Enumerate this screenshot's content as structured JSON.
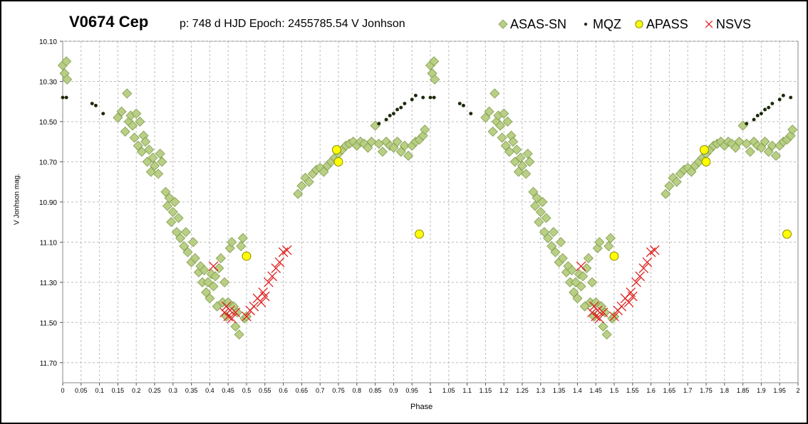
{
  "chart_data": {
    "type": "scatter",
    "title": "V0674 Cep",
    "subtitle": "p: 748 d  HJD Epoch: 2455785.54  V Jonhson",
    "xlabel": "Phase",
    "ylabel": "V Jonhson mag.",
    "xlim": [
      0,
      2
    ],
    "ylim": [
      10.1,
      11.8
    ],
    "y_inverted": true,
    "grid": true,
    "legend_position": "top-right",
    "x_ticks": [
      "0",
      "0.05",
      "0.1",
      "0.15",
      "0.2",
      "0.25",
      "0.3",
      "0.35",
      "0.4",
      "0.45",
      "0.5",
      "0.55",
      "0.6",
      "0.65",
      "0.7",
      "0.75",
      "0.8",
      "0.85",
      "0.9",
      "0.95",
      "1",
      "1.05",
      "1.1",
      "1.15",
      "1.2",
      "1.25",
      "1.3",
      "1.35",
      "1.4",
      "1.45",
      "1.5",
      "1.55",
      "1.6",
      "1.65",
      "1.7",
      "1.75",
      "1.8",
      "1.85",
      "1.9",
      "1.95",
      "2"
    ],
    "y_ticks": [
      "10.10",
      "10.30",
      "10.50",
      "10.70",
      "10.90",
      "11.10",
      "11.30",
      "11.50",
      "11.70"
    ],
    "series": [
      {
        "name": "ASAS-SN",
        "marker": "diamond",
        "color": "#b5cc7f",
        "stroke": "#7f9a4a",
        "points": [
          [
            0.0,
            10.22
          ],
          [
            0.005,
            10.26
          ],
          [
            0.01,
            10.2
          ],
          [
            0.012,
            10.29
          ],
          [
            0.15,
            10.48
          ],
          [
            0.16,
            10.45
          ],
          [
            0.17,
            10.55
          ],
          [
            0.175,
            10.36
          ],
          [
            0.18,
            10.5
          ],
          [
            0.185,
            10.47
          ],
          [
            0.19,
            10.52
          ],
          [
            0.195,
            10.58
          ],
          [
            0.2,
            10.46
          ],
          [
            0.205,
            10.62
          ],
          [
            0.21,
            10.5
          ],
          [
            0.215,
            10.65
          ],
          [
            0.22,
            10.57
          ],
          [
            0.225,
            10.6
          ],
          [
            0.23,
            10.7
          ],
          [
            0.235,
            10.64
          ],
          [
            0.24,
            10.75
          ],
          [
            0.245,
            10.68
          ],
          [
            0.25,
            10.72
          ],
          [
            0.26,
            10.76
          ],
          [
            0.265,
            10.66
          ],
          [
            0.27,
            10.7
          ],
          [
            0.28,
            10.85
          ],
          [
            0.285,
            10.92
          ],
          [
            0.29,
            10.88
          ],
          [
            0.295,
            11.0
          ],
          [
            0.3,
            10.95
          ],
          [
            0.305,
            10.9
          ],
          [
            0.31,
            11.05
          ],
          [
            0.315,
            10.98
          ],
          [
            0.32,
            11.08
          ],
          [
            0.33,
            11.12
          ],
          [
            0.335,
            11.05
          ],
          [
            0.34,
            11.15
          ],
          [
            0.35,
            11.2
          ],
          [
            0.355,
            11.1
          ],
          [
            0.36,
            11.18
          ],
          [
            0.37,
            11.25
          ],
          [
            0.375,
            11.22
          ],
          [
            0.38,
            11.3
          ],
          [
            0.385,
            11.24
          ],
          [
            0.39,
            11.35
          ],
          [
            0.395,
            11.3
          ],
          [
            0.4,
            11.38
          ],
          [
            0.405,
            11.26
          ],
          [
            0.41,
            11.32
          ],
          [
            0.415,
            11.27
          ],
          [
            0.42,
            11.42
          ],
          [
            0.425,
            11.23
          ],
          [
            0.43,
            11.18
          ],
          [
            0.435,
            11.4
          ],
          [
            0.44,
            11.3
          ],
          [
            0.445,
            11.47
          ],
          [
            0.45,
            11.4
          ],
          [
            0.455,
            11.13
          ],
          [
            0.46,
            11.1
          ],
          [
            0.465,
            11.42
          ],
          [
            0.47,
            11.52
          ],
          [
            0.475,
            11.45
          ],
          [
            0.48,
            11.56
          ],
          [
            0.485,
            11.12
          ],
          [
            0.49,
            11.08
          ],
          [
            0.495,
            11.48
          ],
          [
            0.5,
            11.47
          ],
          [
            0.64,
            10.86
          ],
          [
            0.65,
            10.82
          ],
          [
            0.66,
            10.78
          ],
          [
            0.67,
            10.8
          ],
          [
            0.68,
            10.76
          ],
          [
            0.69,
            10.74
          ],
          [
            0.7,
            10.73
          ],
          [
            0.71,
            10.75
          ],
          [
            0.72,
            10.72
          ],
          [
            0.73,
            10.7
          ],
          [
            0.74,
            10.68
          ],
          [
            0.75,
            10.66
          ],
          [
            0.76,
            10.64
          ],
          [
            0.77,
            10.62
          ],
          [
            0.78,
            10.61
          ],
          [
            0.79,
            10.6
          ],
          [
            0.8,
            10.62
          ],
          [
            0.81,
            10.6
          ],
          [
            0.82,
            10.61
          ],
          [
            0.83,
            10.63
          ],
          [
            0.84,
            10.6
          ],
          [
            0.85,
            10.52
          ],
          [
            0.86,
            10.61
          ],
          [
            0.87,
            10.65
          ],
          [
            0.88,
            10.6
          ],
          [
            0.89,
            10.62
          ],
          [
            0.9,
            10.63
          ],
          [
            0.91,
            10.6
          ],
          [
            0.92,
            10.65
          ],
          [
            0.93,
            10.62
          ],
          [
            0.94,
            10.67
          ],
          [
            0.95,
            10.62
          ],
          [
            0.96,
            10.6
          ],
          [
            0.97,
            10.59
          ],
          [
            0.98,
            10.57
          ],
          [
            0.985,
            10.54
          ],
          [
            1.0,
            10.22
          ],
          [
            1.005,
            10.26
          ],
          [
            1.01,
            10.2
          ],
          [
            1.012,
            10.29
          ],
          [
            1.15,
            10.48
          ],
          [
            1.16,
            10.45
          ],
          [
            1.17,
            10.55
          ],
          [
            1.175,
            10.36
          ],
          [
            1.18,
            10.5
          ],
          [
            1.185,
            10.47
          ],
          [
            1.19,
            10.52
          ],
          [
            1.195,
            10.58
          ],
          [
            1.2,
            10.46
          ],
          [
            1.205,
            10.62
          ],
          [
            1.21,
            10.5
          ],
          [
            1.215,
            10.65
          ],
          [
            1.22,
            10.57
          ],
          [
            1.225,
            10.6
          ],
          [
            1.23,
            10.7
          ],
          [
            1.235,
            10.64
          ],
          [
            1.24,
            10.75
          ],
          [
            1.245,
            10.68
          ],
          [
            1.25,
            10.72
          ],
          [
            1.26,
            10.76
          ],
          [
            1.265,
            10.66
          ],
          [
            1.27,
            10.7
          ],
          [
            1.28,
            10.85
          ],
          [
            1.285,
            10.92
          ],
          [
            1.29,
            10.88
          ],
          [
            1.295,
            11.0
          ],
          [
            1.3,
            10.95
          ],
          [
            1.305,
            10.9
          ],
          [
            1.31,
            11.05
          ],
          [
            1.315,
            10.98
          ],
          [
            1.32,
            11.08
          ],
          [
            1.33,
            11.12
          ],
          [
            1.335,
            11.05
          ],
          [
            1.34,
            11.15
          ],
          [
            1.35,
            11.2
          ],
          [
            1.355,
            11.1
          ],
          [
            1.36,
            11.18
          ],
          [
            1.37,
            11.25
          ],
          [
            1.375,
            11.22
          ],
          [
            1.38,
            11.3
          ],
          [
            1.385,
            11.24
          ],
          [
            1.39,
            11.35
          ],
          [
            1.395,
            11.3
          ],
          [
            1.4,
            11.38
          ],
          [
            1.405,
            11.26
          ],
          [
            1.41,
            11.32
          ],
          [
            1.415,
            11.27
          ],
          [
            1.42,
            11.42
          ],
          [
            1.425,
            11.23
          ],
          [
            1.43,
            11.18
          ],
          [
            1.435,
            11.4
          ],
          [
            1.44,
            11.3
          ],
          [
            1.445,
            11.47
          ],
          [
            1.45,
            11.4
          ],
          [
            1.455,
            11.13
          ],
          [
            1.46,
            11.1
          ],
          [
            1.465,
            11.42
          ],
          [
            1.47,
            11.52
          ],
          [
            1.475,
            11.45
          ],
          [
            1.48,
            11.56
          ],
          [
            1.485,
            11.12
          ],
          [
            1.49,
            11.08
          ],
          [
            1.495,
            11.48
          ],
          [
            1.5,
            11.47
          ],
          [
            1.64,
            10.86
          ],
          [
            1.65,
            10.82
          ],
          [
            1.66,
            10.78
          ],
          [
            1.67,
            10.8
          ],
          [
            1.68,
            10.76
          ],
          [
            1.69,
            10.74
          ],
          [
            1.7,
            10.73
          ],
          [
            1.71,
            10.75
          ],
          [
            1.72,
            10.72
          ],
          [
            1.73,
            10.7
          ],
          [
            1.74,
            10.68
          ],
          [
            1.75,
            10.66
          ],
          [
            1.76,
            10.64
          ],
          [
            1.77,
            10.62
          ],
          [
            1.78,
            10.61
          ],
          [
            1.79,
            10.6
          ],
          [
            1.8,
            10.62
          ],
          [
            1.81,
            10.6
          ],
          [
            1.82,
            10.61
          ],
          [
            1.83,
            10.63
          ],
          [
            1.84,
            10.6
          ],
          [
            1.85,
            10.52
          ],
          [
            1.86,
            10.61
          ],
          [
            1.87,
            10.65
          ],
          [
            1.88,
            10.6
          ],
          [
            1.89,
            10.62
          ],
          [
            1.9,
            10.63
          ],
          [
            1.91,
            10.6
          ],
          [
            1.92,
            10.65
          ],
          [
            1.93,
            10.62
          ],
          [
            1.94,
            10.67
          ],
          [
            1.95,
            10.62
          ],
          [
            1.96,
            10.6
          ],
          [
            1.97,
            10.59
          ],
          [
            1.98,
            10.57
          ],
          [
            1.985,
            10.54
          ]
        ]
      },
      {
        "name": "MQZ",
        "marker": "dot",
        "color": "#1a2a08",
        "points": [
          [
            0.0,
            10.38
          ],
          [
            0.01,
            10.38
          ],
          [
            0.08,
            10.41
          ],
          [
            0.09,
            10.42
          ],
          [
            0.11,
            10.46
          ],
          [
            0.86,
            10.51
          ],
          [
            0.88,
            10.49
          ],
          [
            0.89,
            10.47
          ],
          [
            0.9,
            10.46
          ],
          [
            0.91,
            10.44
          ],
          [
            0.92,
            10.43
          ],
          [
            0.93,
            10.41
          ],
          [
            0.95,
            10.39
          ],
          [
            0.96,
            10.37
          ],
          [
            0.98,
            10.38
          ],
          [
            1.0,
            10.38
          ],
          [
            1.01,
            10.38
          ],
          [
            1.08,
            10.41
          ],
          [
            1.09,
            10.42
          ],
          [
            1.11,
            10.46
          ],
          [
            1.86,
            10.51
          ],
          [
            1.88,
            10.49
          ],
          [
            1.89,
            10.47
          ],
          [
            1.9,
            10.46
          ],
          [
            1.91,
            10.44
          ],
          [
            1.92,
            10.43
          ],
          [
            1.93,
            10.41
          ],
          [
            1.95,
            10.39
          ],
          [
            1.96,
            10.37
          ],
          [
            1.98,
            10.38
          ]
        ]
      },
      {
        "name": "APASS",
        "marker": "circle",
        "color": "#ffff00",
        "stroke": "#8a8a00",
        "points": [
          [
            0.5,
            11.17
          ],
          [
            0.745,
            10.64
          ],
          [
            0.75,
            10.7
          ],
          [
            0.97,
            11.06
          ],
          [
            1.5,
            11.17
          ],
          [
            1.745,
            10.64
          ],
          [
            1.75,
            10.7
          ],
          [
            1.97,
            11.06
          ]
        ]
      },
      {
        "name": "NSVS",
        "marker": "x",
        "color": "#e02020",
        "points": [
          [
            0.41,
            11.22
          ],
          [
            0.44,
            11.45
          ],
          [
            0.445,
            11.42
          ],
          [
            0.45,
            11.47
          ],
          [
            0.455,
            11.44
          ],
          [
            0.46,
            11.48
          ],
          [
            0.47,
            11.45
          ],
          [
            0.5,
            11.47
          ],
          [
            0.51,
            11.44
          ],
          [
            0.52,
            11.42
          ],
          [
            0.53,
            11.38
          ],
          [
            0.54,
            11.4
          ],
          [
            0.545,
            11.35
          ],
          [
            0.55,
            11.37
          ],
          [
            0.56,
            11.3
          ],
          [
            0.57,
            11.27
          ],
          [
            0.58,
            11.23
          ],
          [
            0.59,
            11.2
          ],
          [
            0.6,
            11.15
          ],
          [
            0.61,
            11.14
          ],
          [
            1.41,
            11.22
          ],
          [
            1.44,
            11.45
          ],
          [
            1.445,
            11.42
          ],
          [
            1.45,
            11.47
          ],
          [
            1.455,
            11.44
          ],
          [
            1.46,
            11.48
          ],
          [
            1.47,
            11.45
          ],
          [
            1.5,
            11.47
          ],
          [
            1.51,
            11.44
          ],
          [
            1.52,
            11.42
          ],
          [
            1.53,
            11.38
          ],
          [
            1.54,
            11.4
          ],
          [
            1.545,
            11.35
          ],
          [
            1.55,
            11.37
          ],
          [
            1.56,
            11.3
          ],
          [
            1.57,
            11.27
          ],
          [
            1.58,
            11.23
          ],
          [
            1.59,
            11.2
          ],
          [
            1.6,
            11.15
          ],
          [
            1.61,
            11.14
          ]
        ]
      }
    ]
  }
}
